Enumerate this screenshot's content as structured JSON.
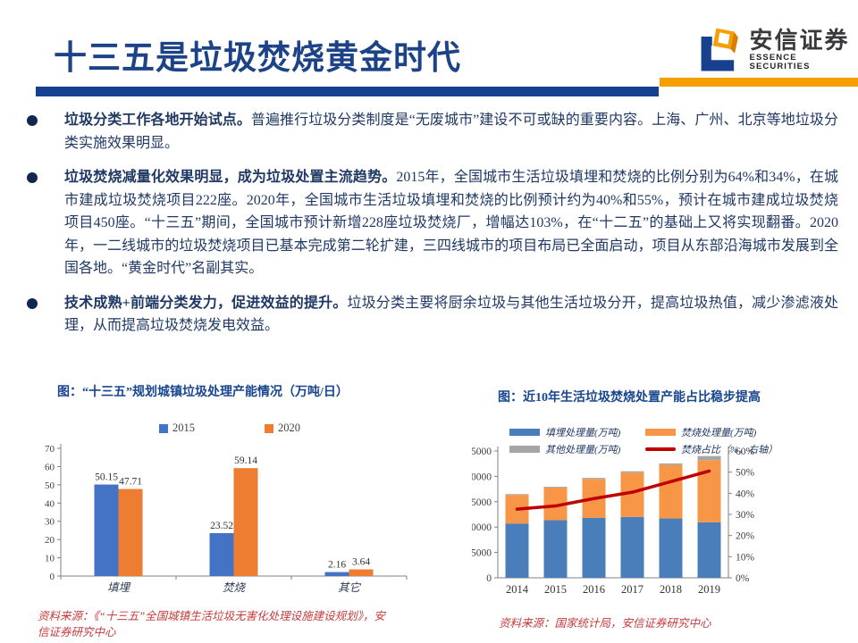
{
  "header": {
    "title": "十三五是垃圾焚烧黄金时代",
    "logo": {
      "cn": "安信证券",
      "en": "ESSENCE SECURITIES"
    },
    "colors": {
      "title": "#1C4287",
      "divider_blue": "#174190",
      "divider_orange": "#F5A000"
    }
  },
  "bullets": [
    {
      "lead": "垃圾分类工作各地开始试点。",
      "body": "普遍推行垃圾分类制度是“无废城市”建设不可或缺的重要内容。上海、广州、北京等地垃圾分类实施效果明显。"
    },
    {
      "lead": "垃圾焚烧减量化效果明显，成为垃圾处置主流趋势。",
      "body": "2015年，全国城市生活垃圾填埋和焚烧的比例分别为64%和34%，在城市建成垃圾焚烧项目222座。2020年，全国城市生活垃圾填埋和焚烧的比例预计约为40%和55%，预计在城市建成垃圾焚烧项目450座。“十三五”期间，全国城市预计新增228座垃圾焚烧厂，增幅达103%，在“十二五”的基础上又将实现翻番。2020年，一二线城市的垃圾焚烧项目已基本完成第二轮扩建，三四线城市的项目布局已全面启动，项目从东部沿海城市发展到全国各地。“黄金时代”名副其实。"
    },
    {
      "lead": "技术成熟+前端分类发力，促进效益的提升。",
      "body": "垃圾分类主要将厨余垃圾与其他生活垃圾分开，提高垃圾热值，减少渗滤液处理，从而提高垃圾焚烧发电效益。"
    }
  ],
  "chart_data": [
    {
      "type": "bar",
      "title": "图：“十三五”规划城镇垃圾处理产能情况（万吨/日）",
      "categories": [
        "填埋",
        "焚烧",
        "其它"
      ],
      "series": [
        {
          "name": "2015",
          "color": "#4472C4",
          "values": [
            50.15,
            23.52,
            2.16
          ]
        },
        {
          "name": "2020",
          "color": "#ED7D31",
          "values": [
            47.71,
            59.14,
            3.64
          ]
        }
      ],
      "ylim": [
        0,
        70
      ],
      "ytick_step": 10,
      "grid": false,
      "legend_position": "top",
      "source": "资料来源：《“十三五”全国城镇生活垃圾无害化处理设施建设规划》，安信证券研究中心"
    },
    {
      "type": "bar+line",
      "title": "图：近10年生活垃圾焚烧处置产能占比稳步提高",
      "categories": [
        "2014",
        "2015",
        "2016",
        "2017",
        "2018",
        "2019"
      ],
      "stacked_series": [
        {
          "name": "填埋处理量(万吨)",
          "color": "#4A7EBB",
          "values": [
            10700,
            11350,
            11800,
            12000,
            11700,
            10950
          ]
        },
        {
          "name": "焚烧处理量(万吨)",
          "color": "#F79646",
          "values": [
            5650,
            6450,
            7700,
            8750,
            10550,
            12250
          ]
        },
        {
          "name": "其他处理量(万吨)",
          "color": "#A6A6A6",
          "values": [
            150,
            150,
            200,
            250,
            300,
            800
          ]
        }
      ],
      "line_series": {
        "name": "焚烧占比（%，右轴）",
        "color": "#C00000",
        "values": [
          32.5,
          34,
          37.5,
          40.5,
          45.5,
          50.5
        ]
      },
      "ylim_left": [
        0,
        25000
      ],
      "ytick_step_left": 5000,
      "ylim_right": [
        0,
        60
      ],
      "ytick_step_right": 10,
      "grid": false,
      "legend_position": "top",
      "source": "资料来源：国家统计局，安信证券研究中心"
    }
  ]
}
